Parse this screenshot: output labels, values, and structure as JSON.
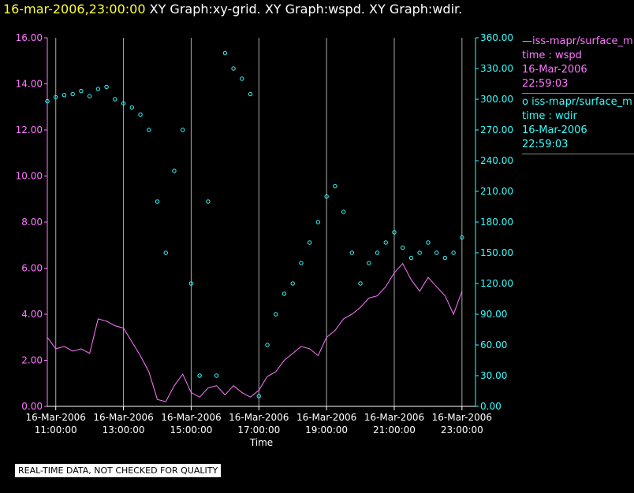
{
  "header": {
    "datetime": "16-mar-2006,23:00:00",
    "graphs": "XY Graph:xy-grid.  XY Graph:wspd.  XY Graph:wdir."
  },
  "legend": {
    "wspd": {
      "name": "—iss-mapr/surface_m",
      "var": "time : wspd",
      "date": "16-Mar-2006",
      "time": "22:59:03"
    },
    "wdir": {
      "name": "o  iss-mapr/surface_m",
      "var": "time : wdir",
      "date": "16-Mar-2006",
      "time": "22:59:03"
    }
  },
  "notice": "REAL-TIME DATA, NOT CHECKED FOR QUALITY",
  "colors": {
    "wspd": "#ff77ff",
    "wdir": "#33ffff",
    "grid": "#aaaaaa",
    "left_axis": "#ff77ff",
    "right_axis": "#33ffff"
  },
  "chart_data": {
    "type": "line",
    "xlabel": "Time",
    "x_range_hours": [
      10.75,
      23.4
    ],
    "x_ticks": [
      {
        "hour": 11,
        "date": "16-Mar-2006",
        "time": "11:00:00"
      },
      {
        "hour": 13,
        "date": "16-Mar-2006",
        "time": "13:00:00"
      },
      {
        "hour": 15,
        "date": "16-Mar-2006",
        "time": "15:00:00"
      },
      {
        "hour": 17,
        "date": "16-Mar-2006",
        "time": "17:00:00"
      },
      {
        "hour": 19,
        "date": "16-Mar-2006",
        "time": "19:00:00"
      },
      {
        "hour": 21,
        "date": "16-Mar-2006",
        "time": "21:00:00"
      },
      {
        "hour": 23,
        "date": "16-Mar-2006",
        "time": "23:00:00"
      }
    ],
    "left_axis": {
      "range": [
        0,
        16
      ],
      "ticks": [
        "0.00",
        "2.00",
        "4.00",
        "6.00",
        "8.00",
        "10.00",
        "12.00",
        "14.00",
        "16.00"
      ]
    },
    "right_axis": {
      "range": [
        0,
        360
      ],
      "ticks": [
        "0.00",
        "30.00",
        "60.00",
        "90.00",
        "120.00",
        "150.00",
        "180.00",
        "210.00",
        "240.00",
        "270.00",
        "300.00",
        "330.00",
        "360.00"
      ]
    },
    "series": [
      {
        "name": "wspd",
        "axis": "left",
        "style": "line",
        "x": [
          10.75,
          11.0,
          11.25,
          11.5,
          11.75,
          12.0,
          12.25,
          12.5,
          12.75,
          13.0,
          13.25,
          13.5,
          13.75,
          14.0,
          14.25,
          14.5,
          14.75,
          15.0,
          15.25,
          15.5,
          15.75,
          16.0,
          16.25,
          16.5,
          16.75,
          17.0,
          17.25,
          17.5,
          17.75,
          18.0,
          18.25,
          18.5,
          18.75,
          19.0,
          19.25,
          19.5,
          19.75,
          20.0,
          20.25,
          20.5,
          20.75,
          21.0,
          21.25,
          21.5,
          21.75,
          22.0,
          22.25,
          22.5,
          22.75,
          23.0
        ],
        "y": [
          3.0,
          2.5,
          2.6,
          2.4,
          2.5,
          2.3,
          3.8,
          3.7,
          3.5,
          3.4,
          2.8,
          2.2,
          1.5,
          0.3,
          0.2,
          0.9,
          1.4,
          0.6,
          0.4,
          0.8,
          0.9,
          0.5,
          0.9,
          0.6,
          0.4,
          0.7,
          1.3,
          1.5,
          2.0,
          2.3,
          2.6,
          2.5,
          2.2,
          3.0,
          3.3,
          3.8,
          4.0,
          4.3,
          4.7,
          4.8,
          5.2,
          5.8,
          6.2,
          5.5,
          5.0,
          5.6,
          5.2,
          4.8,
          4.0,
          5.0
        ]
      },
      {
        "name": "wdir",
        "axis": "right",
        "style": "scatter",
        "x": [
          10.75,
          11.0,
          11.25,
          11.5,
          11.75,
          12.0,
          12.25,
          12.5,
          12.75,
          13.0,
          13.25,
          13.5,
          13.75,
          14.0,
          14.25,
          14.5,
          14.75,
          15.0,
          15.25,
          15.5,
          15.75,
          16.0,
          16.25,
          16.5,
          16.75,
          17.0,
          17.25,
          17.5,
          17.75,
          18.0,
          18.25,
          18.5,
          18.75,
          19.0,
          19.25,
          19.5,
          19.75,
          20.0,
          20.25,
          20.5,
          20.75,
          21.0,
          21.25,
          21.5,
          21.75,
          22.0,
          22.25,
          22.5,
          22.75,
          23.0
        ],
        "y": [
          298,
          302,
          304,
          305,
          308,
          303,
          310,
          312,
          300,
          296,
          292,
          285,
          270,
          200,
          150,
          230,
          270,
          120,
          30,
          200,
          30,
          345,
          330,
          320,
          305,
          10,
          60,
          90,
          110,
          120,
          140,
          160,
          180,
          205,
          215,
          190,
          150,
          120,
          140,
          150,
          160,
          170,
          155,
          145,
          150,
          160,
          150,
          145,
          150,
          165
        ]
      }
    ]
  }
}
